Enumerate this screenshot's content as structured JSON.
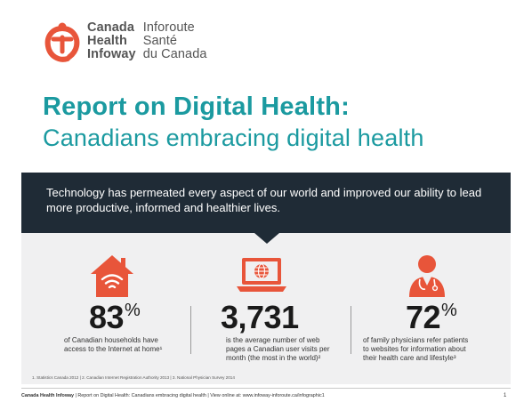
{
  "logo": {
    "en_lines": [
      "Canada",
      "Health",
      "Infoway"
    ],
    "fr_lines": [
      "Inforoute",
      "Santé",
      "du Canada"
    ]
  },
  "title": {
    "main": "Report on Digital Health:",
    "sub": "Canadians embracing digital health"
  },
  "banner": {
    "text": "Technology has permeated every aspect of our world and improved our ability to lead more productive, informed and healthier lives."
  },
  "stats": [
    {
      "icon": "house-wifi-icon",
      "value": "83",
      "suffix": "%",
      "desc_lines": [
        "of Canadian households have",
        "access to the Internet at home¹"
      ]
    },
    {
      "icon": "laptop-globe-icon",
      "value": "3,731",
      "suffix": "",
      "desc_lines": [
        "is the average number of web",
        "pages a Canadian user visits per",
        "month (the most in the world)²"
      ]
    },
    {
      "icon": "physician-icon",
      "value": "72",
      "suffix": "%",
      "desc_lines": [
        "of family physicians refer patients",
        "to websites for information about",
        "their health care and lifestyle³"
      ]
    }
  ],
  "footnotes": "1. Statistics Canada 2012  |  2. Canadian Internet Registration Authority 2013  |  3. National Physician Survey 2014",
  "footer": {
    "org": "Canada Health Infoway",
    "rest": "  |  Report on Digital Health: Canadians embracing digital health  |  View online at: www.infoway-inforoute.ca/infographic1",
    "page": "1"
  },
  "colors": {
    "teal": "#1b9aa0",
    "orange": "#e8553a",
    "banner": "#1f2b36",
    "panel": "#f0f0f1"
  }
}
